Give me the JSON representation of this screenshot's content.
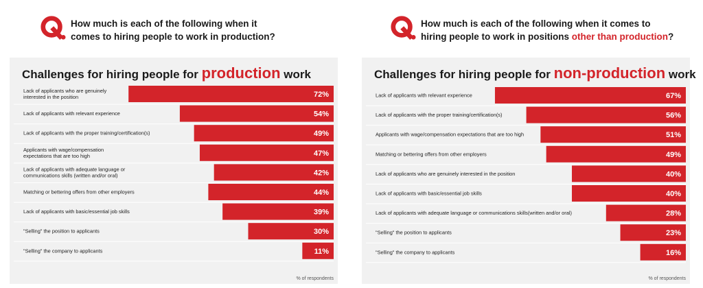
{
  "left_question": {
    "mark": "Q.",
    "line1": "How much is each of the following when it",
    "line2": "comes  to hiring people to work in production?"
  },
  "right_question": {
    "mark": "Q.",
    "line1": "How much is each of the following when it comes to",
    "line2_prefix": "hiring people to work in positions ",
    "line2_highlight": "other than production",
    "line2_suffix": "?"
  },
  "colors": {
    "accent": "#d3242a",
    "panel": "#f1f1f1",
    "text": "#1a1a1a"
  },
  "chart_data": [
    {
      "type": "bar",
      "orientation": "horizontal",
      "title_prefix": "Challenges for hiring people for ",
      "title_highlight": "production",
      "title_suffix": " work",
      "unit": "%",
      "xlim": [
        0,
        100
      ],
      "footnote": "% of respondents",
      "categories": [
        [
          "Lack of applicants who are genuinely",
          "interested in the position"
        ],
        [
          "Lack of applicants with relevant experience"
        ],
        [
          "Lack of applicants with the proper training/certification(s)"
        ],
        [
          "Applicants with wage/compensation",
          "expectations that are too high"
        ],
        [
          "Lack of applicants with adequate language or",
          "communications skills (written and/or oral)"
        ],
        [
          "Matching or bettering offers from other employers"
        ],
        [
          "Lack of applicants with basic/essential job skills"
        ],
        [
          "\"Selling\" the position to applicants"
        ],
        [
          "\"Selling\" the company to applicants"
        ]
      ],
      "values": [
        72,
        54,
        49,
        47,
        42,
        44,
        39,
        30,
        11
      ]
    },
    {
      "type": "bar",
      "orientation": "horizontal",
      "title_prefix": "Challenges for hiring people for ",
      "title_highlight": "non-production",
      "title_suffix": " work",
      "unit": "%",
      "xlim": [
        0,
        100
      ],
      "footnote": "% of respondents",
      "categories": [
        [
          "Lack of applicants with relevant experience"
        ],
        [
          "Lack of applicants with the proper training/certification(s)"
        ],
        [
          "Applicants with wage/compensation expectations that are too high"
        ],
        [
          "Matching or bettering offers from other employers"
        ],
        [
          "Lack of applicants who are genuinely interested in the position"
        ],
        [
          "Lack of applicants with basic/essential job skills"
        ],
        [
          "Lack of applicants with adequate language or communications skills(written and/or oral)"
        ],
        [
          "\"Selling\" the position to applicants"
        ],
        [
          "\"Selling\" the company to applicants"
        ]
      ],
      "values": [
        67,
        56,
        51,
        49,
        40,
        40,
        28,
        23,
        16
      ]
    }
  ]
}
